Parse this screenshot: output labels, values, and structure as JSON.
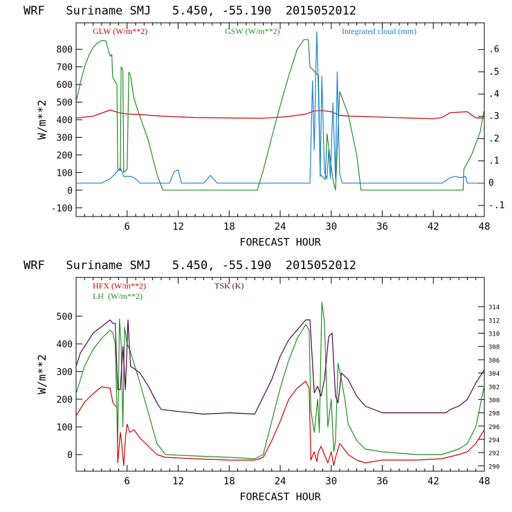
{
  "chart_data": [
    {
      "type": "line",
      "title": "WRF   Suriname SMJ   5.450, -55.190  2015052012",
      "xlabel": "FORECAST HOUR",
      "ylabel": "W/m**2",
      "xlim": [
        0,
        48
      ],
      "ylim": [
        -150,
        950
      ],
      "y2lim": [
        -0.15,
        0.72
      ],
      "x_ticks": [
        6,
        12,
        18,
        24,
        30,
        36,
        42,
        48
      ],
      "y_ticks": [
        800,
        700,
        600,
        500,
        400,
        300,
        200,
        100,
        0,
        -100
      ],
      "y2_ticks": [
        ".6",
        ".5",
        ".4",
        ".3",
        ".2",
        ".1",
        "0",
        "-.1"
      ],
      "y2_values": [
        0.6,
        0.5,
        0.4,
        0.3,
        0.2,
        0.1,
        0,
        -0.1
      ],
      "legend": [
        {
          "label": "GLW (W/m**2)",
          "color": "#cc0000",
          "position": "left"
        },
        {
          "label": "GSW (W/m**2)",
          "color": "#228b22",
          "position": "center"
        },
        {
          "label": "Integrated cloud (mm)",
          "color": "#1e7fd8",
          "position": "right"
        }
      ],
      "series": [
        {
          "name": "GLW",
          "color": "#cc0000",
          "axis": "left",
          "x": [
            0,
            2,
            4,
            5,
            6,
            8,
            10,
            14,
            18,
            22,
            25,
            27,
            28,
            29,
            30,
            31,
            32,
            36,
            40,
            42,
            43,
            44,
            46,
            47,
            48
          ],
          "y": [
            410,
            420,
            455,
            440,
            432,
            428,
            420,
            412,
            410,
            408,
            418,
            432,
            450,
            452,
            445,
            425,
            420,
            415,
            408,
            405,
            412,
            440,
            445,
            410,
            410
          ]
        },
        {
          "name": "GSW",
          "color": "#228b22",
          "axis": "left",
          "x": [
            0,
            0.5,
            1,
            1.5,
            2,
            2.5,
            3,
            3.5,
            4,
            4.2,
            4.3,
            4.8,
            4.9,
            5.2,
            5.3,
            5.5,
            5.6,
            6.0,
            6.2,
            6.4,
            6.8,
            7.5,
            8.5,
            9.5,
            10.2,
            21.3,
            22,
            23,
            24,
            25,
            26,
            26.8,
            27.3,
            27.5,
            28.5,
            28.7,
            29.3,
            29.5,
            30.2,
            30.5,
            31,
            32,
            33,
            33.5,
            45.5,
            45.6,
            46.5,
            47.5,
            48
          ],
          "y": [
            500,
            610,
            700,
            765,
            810,
            835,
            850,
            848,
            760,
            770,
            640,
            600,
            120,
            110,
            700,
            680,
            100,
            120,
            670,
            650,
            520,
            420,
            280,
            90,
            0,
            0,
            110,
            300,
            480,
            650,
            800,
            855,
            855,
            700,
            650,
            90,
            60,
            320,
            60,
            0,
            560,
            430,
            200,
            0,
            0,
            120,
            200,
            330,
            460
          ]
        },
        {
          "name": "Integrated cloud",
          "color": "#1e7fd8",
          "axis": "right",
          "x": [
            0,
            3,
            4,
            4.8,
            5.2,
            5.6,
            6,
            6.5,
            7,
            7.5,
            8,
            11,
            11.5,
            12,
            12.4,
            15,
            15.8,
            16.6,
            27.5,
            27.8,
            28.0,
            28.2,
            28.3,
            28.5,
            28.7,
            28.9,
            29.2,
            29.5,
            29.7,
            29.9,
            30.2,
            30.5,
            30.7,
            31.0,
            31.3,
            33,
            43,
            44,
            44.6,
            45.2,
            45.8,
            46,
            48
          ],
          "y": [
            0,
            0,
            0.02,
            0.05,
            0.07,
            0.03,
            0.03,
            0.03,
            0.02,
            0,
            0,
            0,
            0.05,
            0.06,
            0,
            0,
            0.035,
            0,
            0,
            0.46,
            0.15,
            0.52,
            0.68,
            0.4,
            0.03,
            0.48,
            0.05,
            0.02,
            0.15,
            0.02,
            0.36,
            0.02,
            0.5,
            0.04,
            0,
            0,
            0,
            0.025,
            0.03,
            0.025,
            0.03,
            0,
            0
          ]
        }
      ]
    },
    {
      "type": "line",
      "title": "WRF   Suriname SMJ   5.450, -55.190  2015052012",
      "xlabel": "FORECAST HOUR",
      "ylabel": "W/m**2",
      "xlim": [
        0,
        48
      ],
      "ylim": [
        -60,
        640
      ],
      "y2lim": [
        289.2,
        318.4
      ],
      "x_ticks": [
        6,
        12,
        18,
        24,
        30,
        36,
        42,
        48
      ],
      "y_ticks": [
        500,
        400,
        300,
        200,
        100,
        0
      ],
      "y2_ticks": [
        314,
        312,
        310,
        308,
        306,
        304,
        302,
        300,
        298,
        296,
        294,
        292,
        290
      ],
      "legend": [
        {
          "label": "HFX (W/m**2)",
          "color": "#cc0000",
          "position": "left"
        },
        {
          "label": "LH  (W/m**2)",
          "color": "#228b22",
          "position": "left"
        },
        {
          "label": "TSK (K)",
          "color": "#4b0046",
          "position": "center"
        }
      ],
      "series": [
        {
          "name": "HFX",
          "color": "#cc0000",
          "axis": "left",
          "x": [
            0,
            1,
            2,
            3,
            4,
            4.3,
            4.5,
            4.8,
            4.9,
            5.2,
            5.3,
            5.6,
            5.8,
            6.0,
            6.3,
            6.8,
            7.5,
            8.5,
            9.5,
            10.5,
            14,
            18,
            21,
            22,
            23,
            24,
            25,
            26,
            27,
            27.4,
            27.6,
            28.0,
            28.3,
            28.5,
            28.8,
            29.2,
            29.6,
            30.0,
            30.3,
            30.5,
            31,
            32,
            33,
            34,
            36,
            40,
            43,
            45,
            46,
            47,
            48
          ],
          "y": [
            140,
            190,
            220,
            245,
            240,
            190,
            180,
            170,
            -30,
            80,
            60,
            -40,
            60,
            110,
            80,
            90,
            60,
            30,
            0,
            -10,
            -15,
            -20,
            -20,
            -10,
            50,
            120,
            200,
            240,
            265,
            240,
            -20,
            10,
            -25,
            10,
            30,
            0,
            -30,
            10,
            -40,
            -10,
            40,
            0,
            -20,
            -30,
            -20,
            -20,
            -15,
            0,
            10,
            40,
            90
          ]
        },
        {
          "name": "LH",
          "color": "#228b22",
          "axis": "left",
          "x": [
            0,
            1,
            2,
            3,
            4,
            4.3,
            4.6,
            4.9,
            5.1,
            5.3,
            5.5,
            5.7,
            6.0,
            6.3,
            6.8,
            7.5,
            8.5,
            9.5,
            10.5,
            14,
            18,
            21,
            22,
            23,
            24,
            25,
            26,
            27,
            27.4,
            27.6,
            28.0,
            28.4,
            28.6,
            28.9,
            29.2,
            29.6,
            30.0,
            30.3,
            30.5,
            30.8,
            31.2,
            31.6,
            32,
            33,
            34,
            36,
            40,
            43,
            45,
            46,
            47,
            48
          ],
          "y": [
            220,
            320,
            380,
            420,
            450,
            440,
            400,
            50,
            490,
            400,
            100,
            460,
            400,
            380,
            330,
            260,
            150,
            40,
            0,
            -5,
            -10,
            -15,
            0,
            120,
            240,
            340,
            420,
            470,
            450,
            160,
            80,
            200,
            80,
            550,
            480,
            100,
            200,
            10,
            50,
            330,
            270,
            200,
            110,
            50,
            20,
            10,
            0,
            0,
            20,
            40,
            100,
            250
          ]
        },
        {
          "name": "TSK",
          "color": "#4b0046",
          "axis": "right",
          "x": [
            0,
            0.5,
            1,
            2,
            3,
            4,
            4.3,
            4.6,
            4.9,
            5.2,
            5.5,
            5.8,
            6.1,
            6.4,
            7,
            7.5,
            8.5,
            9.5,
            10,
            12,
            15,
            18,
            21,
            23,
            24,
            25,
            26,
            27,
            27.5,
            28.0,
            28.4,
            28.8,
            29.2,
            29.7,
            30.1,
            30.5,
            30.8,
            31.2,
            32,
            33,
            34,
            36,
            40,
            42,
            43.5,
            44,
            45,
            46,
            47,
            48
          ],
          "y": [
            305,
            307,
            308,
            310,
            311,
            312,
            311.5,
            311.5,
            301.5,
            301.5,
            308,
            301.5,
            312,
            305,
            304.5,
            304,
            302,
            299.5,
            298.5,
            298.2,
            297.8,
            298,
            297.8,
            303,
            306.5,
            309,
            310.5,
            312,
            312,
            301,
            302,
            300.5,
            303,
            309.5,
            310,
            300.5,
            299.5,
            304,
            303,
            300.5,
            299,
            298,
            298,
            298,
            298,
            298.5,
            299,
            300,
            302.5,
            304.5
          ]
        }
      ]
    }
  ]
}
